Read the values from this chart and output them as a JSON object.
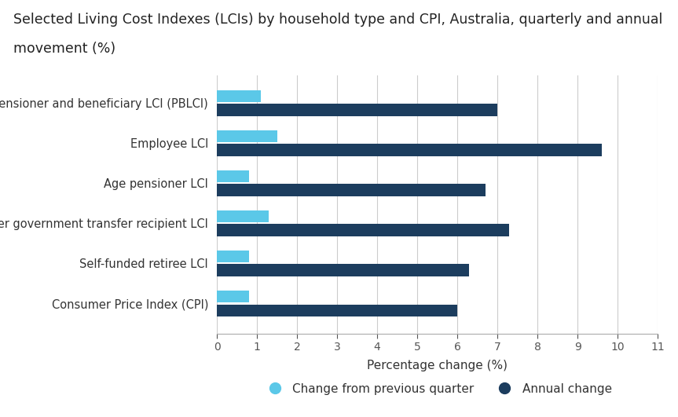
{
  "title_line1": "Selected Living Cost Indexes (LCIs) by household type and CPI, Australia, quarterly and annual",
  "title_line2": "movement (%)",
  "categories": [
    "Pensioner and beneficiary LCI (PBLCI)",
    "Employee LCI",
    "Age pensioner LCI",
    "Other government transfer recipient LCI",
    "Self-funded retiree LCI",
    "Consumer Price Index (CPI)"
  ],
  "quarterly_values": [
    1.1,
    1.5,
    0.8,
    1.3,
    0.8,
    0.8
  ],
  "annual_values": [
    7.0,
    9.6,
    6.7,
    7.3,
    6.3,
    6.0
  ],
  "quarterly_color": "#5BC8E8",
  "annual_color": "#1C3D5E",
  "xlabel": "Percentage change (%)",
  "xlim": [
    0,
    11
  ],
  "xticks": [
    0,
    1,
    2,
    3,
    4,
    5,
    6,
    7,
    8,
    9,
    10,
    11
  ],
  "legend_quarterly": "Change from previous quarter",
  "legend_annual": "Annual change",
  "bar_height": 0.3,
  "background_color": "#ffffff",
  "grid_color": "#cccccc",
  "title_fontsize": 12.5,
  "axis_fontsize": 11,
  "tick_fontsize": 10,
  "label_fontsize": 10.5
}
